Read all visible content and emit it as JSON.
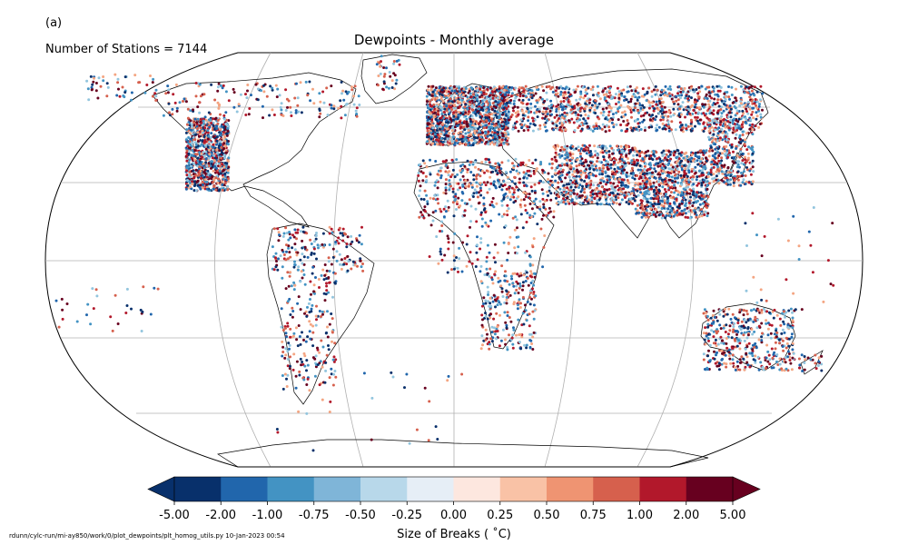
{
  "panel_label": "(a)",
  "station_count_text": "Number of Stations = 7144",
  "title": "Dewpoints - Monthly average",
  "colorbar": {
    "label": "Size of Breaks ( ˚C)",
    "ticks": [
      "-5.00",
      "-2.00",
      "-1.00",
      "-0.75",
      "-0.50",
      "-0.25",
      "0.00",
      "0.25",
      "0.50",
      "0.75",
      "1.00",
      "2.00",
      "5.00"
    ],
    "colors": [
      "#08306b",
      "#2166ac",
      "#4393c3",
      "#7fb5d8",
      "#b8d8ea",
      "#e6eef6",
      "#fde7df",
      "#f9c2a6",
      "#ef9472",
      "#d6604d",
      "#b2182b",
      "#67001f"
    ],
    "extend_low_color": "#08306b",
    "extend_high_color": "#67001f"
  },
  "map": {
    "projection": "robinson",
    "gridlines": true,
    "station_colors": [
      "#08306b",
      "#2166ac",
      "#4393c3",
      "#92c5de",
      "#f4a582",
      "#d6604d",
      "#b2182b",
      "#67001f"
    ]
  },
  "footer_text": "rdunn/cylc-run/mi-ay850/work/0/plot_dewpoints/plt_homog_utils.py   10-Jan-2023 00:54"
}
